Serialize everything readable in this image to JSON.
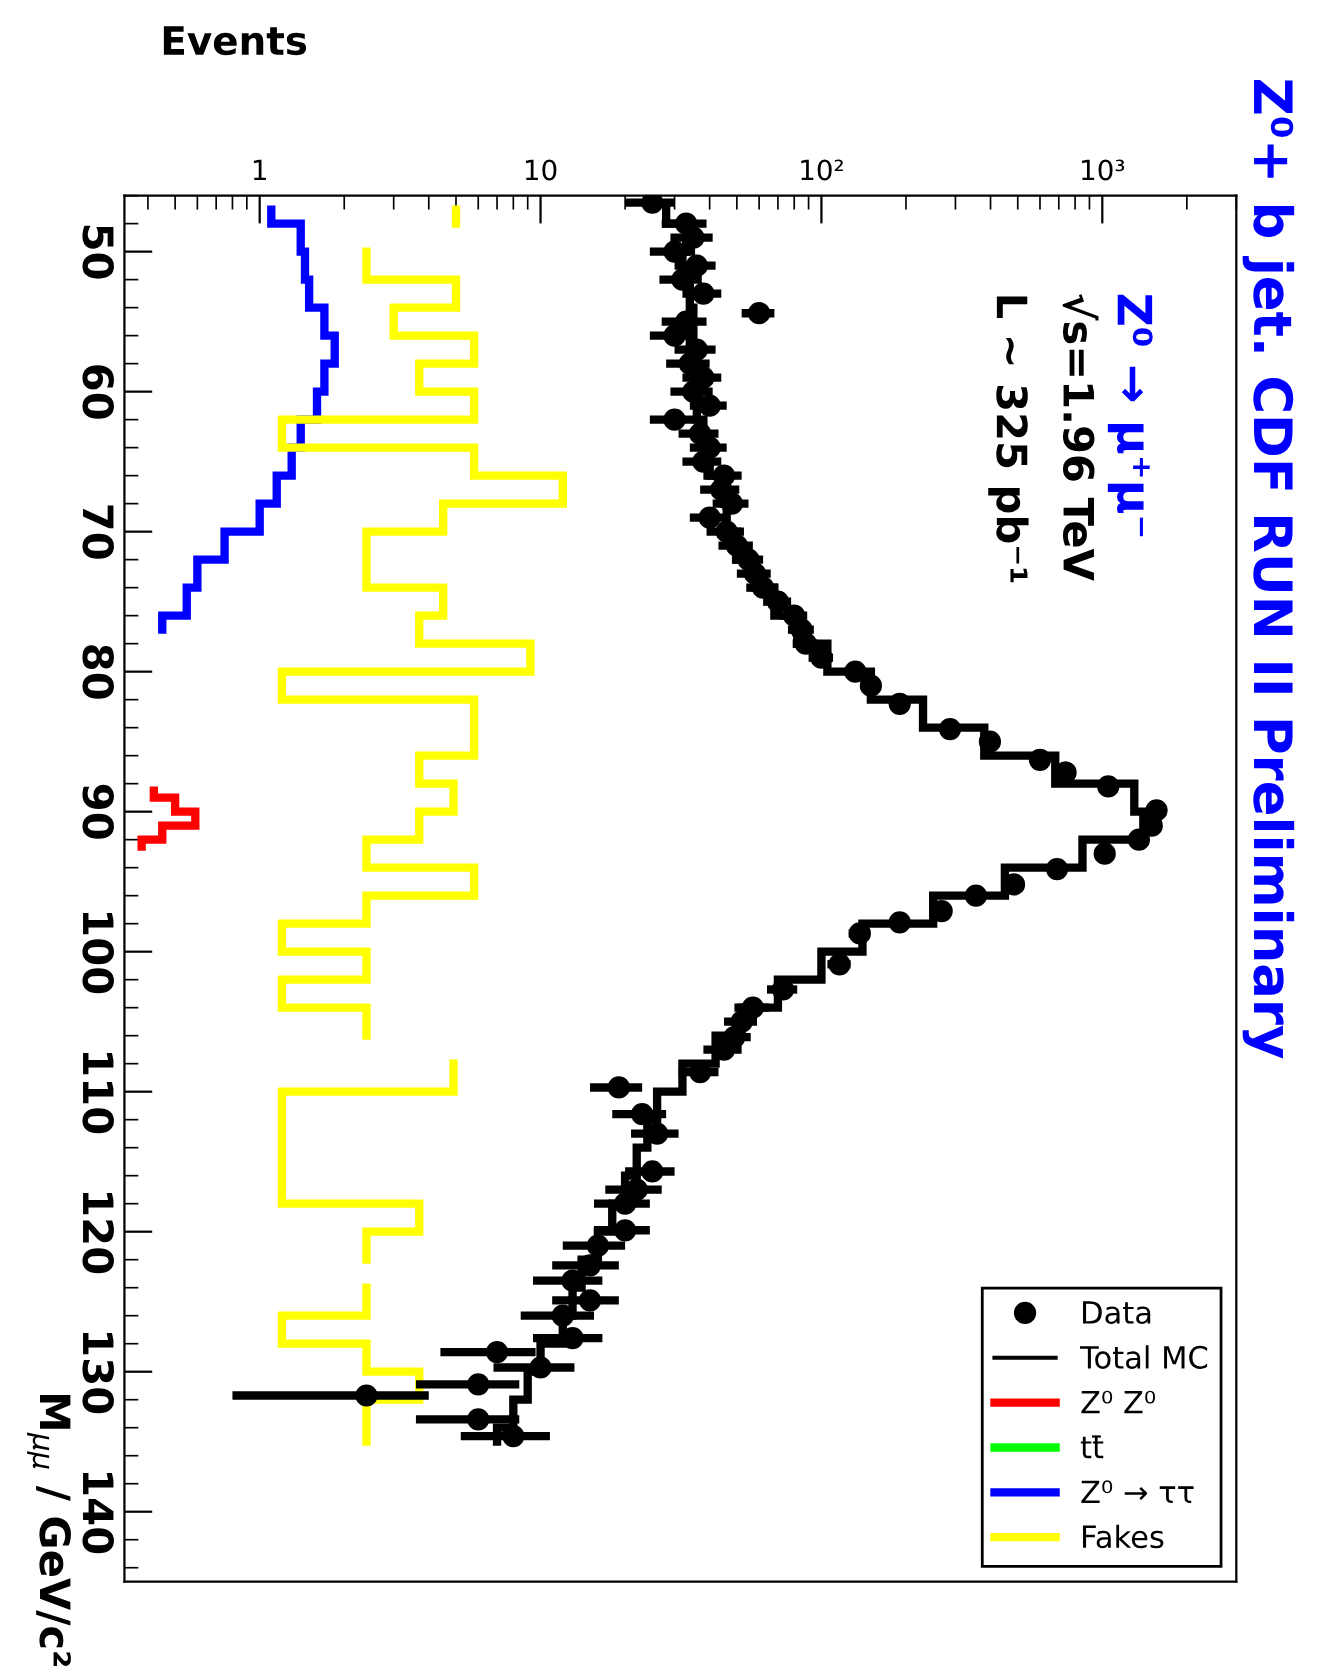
{
  "chart_data": {
    "type": "step",
    "orientation": "horizontal",
    "title": "Z⁰+ b jet. CDF RUN II Preliminary",
    "xlabel": "Events",
    "ylabel": "M$_{μμ}$ / GeV/c²",
    "annotations": [
      "Z⁰ → μ⁺μ⁻",
      "√s=1.96 TeV",
      "L ~ 325 pb⁻¹"
    ],
    "log": "x",
    "xlim": [
      0.33,
      3000
    ],
    "xticks": [
      1,
      10,
      {
        "value": 100,
        "label": "10²"
      },
      {
        "value": 1000,
        "label": "10³"
      }
    ],
    "ylim": [
      145,
      46
    ],
    "yticks": [
      50,
      60,
      70,
      80,
      90,
      100,
      110,
      120,
      130,
      140
    ],
    "grid": false,
    "legend": "bottom right",
    "series": [
      {
        "name": "Data",
        "type": "scatter",
        "marker": "circle",
        "color": "#000000",
        "x": [
          46.5,
          48,
          49,
          50,
          51,
          52,
          53,
          54.4,
          55,
          56,
          57,
          58,
          59,
          60,
          61,
          62,
          63,
          64,
          65,
          66,
          67,
          68,
          69,
          70,
          71,
          72,
          73,
          74,
          75,
          76,
          77,
          78,
          79,
          80,
          81,
          82.3,
          84.1,
          85,
          86.3,
          87.2,
          88.2,
          89.9,
          91,
          92,
          93,
          94.1,
          95.2,
          96,
          97.1,
          97.9,
          98.7,
          100.9,
          102.7,
          104,
          105,
          106.1,
          107,
          108.6,
          109.7,
          111.6,
          113,
          115.7,
          117,
          118,
          119.9,
          121,
          122.4,
          123.5,
          124.9,
          126,
          127.6,
          128.6,
          129.7,
          130.9,
          131.7,
          133.4,
          134.6
        ],
        "values": [
          25,
          33,
          35,
          30,
          36,
          32,
          38,
          60,
          33,
          30,
          36,
          34,
          38,
          35,
          40,
          30,
          37,
          40,
          38,
          45,
          44,
          48,
          40,
          46,
          50,
          55,
          58,
          62,
          70,
          80,
          85,
          88,
          100,
          132,
          150,
          190,
          287,
          398,
          600,
          740,
          1050,
          1560,
          1500,
          1350,
          1020,
          690,
          485,
          355,
          268,
          190,
          137,
          116,
          73,
          57,
          52,
          49,
          45,
          37,
          19,
          23,
          26,
          25,
          22,
          20,
          20,
          16,
          15,
          13,
          15,
          12,
          13,
          7,
          10,
          6,
          2.4,
          6,
          8
        ],
        "errors": [
          5,
          6,
          6,
          5.5,
          6,
          5.5,
          6,
          8,
          6,
          5.5,
          6,
          6,
          6,
          6,
          6,
          5.5,
          6,
          6,
          6,
          7,
          7,
          7,
          6,
          7,
          7,
          7,
          8,
          8,
          8,
          9,
          9,
          9,
          10,
          11,
          12,
          14,
          17,
          20,
          24,
          27,
          32,
          39,
          39,
          37,
          32,
          26,
          22,
          19,
          16,
          14,
          12,
          11,
          9,
          8,
          7,
          7,
          7,
          6,
          4,
          5,
          5,
          5,
          5,
          4.5,
          4.5,
          4,
          4,
          3.6,
          4,
          3.5,
          3.6,
          2.6,
          3.2,
          2.4,
          1.6,
          2.4,
          2.8
        ]
      },
      {
        "name": "Total MC",
        "color": "#000000",
        "x": [
          47,
          49,
          51,
          53,
          55,
          57,
          59,
          61,
          63,
          65,
          67,
          69,
          71,
          73,
          75,
          77,
          79,
          81,
          83,
          85,
          87,
          89,
          91,
          93,
          95,
          97,
          99,
          101,
          103,
          105,
          107,
          109,
          111,
          113,
          115,
          117,
          119,
          121,
          123,
          125,
          127,
          129,
          131,
          133,
          135
        ],
        "values": [
          28,
          33,
          32,
          34,
          35,
          34,
          36,
          36,
          38,
          40,
          45,
          46,
          50,
          58,
          68,
          82,
          105,
          150,
          230,
          380,
          680,
          1300,
          1400,
          850,
          450,
          250,
          140,
          100,
          70,
          52,
          42,
          32,
          26,
          24,
          22,
          20,
          18,
          16,
          14,
          13,
          12,
          10,
          9,
          8,
          7
        ]
      },
      {
        "name": "Z⁰ Z⁰",
        "color": "#ff0000",
        "x": [
          88.5,
          89.5,
          90.5,
          91.5,
          92.5
        ],
        "values": [
          0.42,
          0.5,
          0.59,
          0.45,
          0.38
        ]
      },
      {
        "name": "tt̄",
        "color": "#00ff00"
      },
      {
        "name": "Z⁰ → ττ",
        "color": "#0000ff",
        "x": [
          47,
          49,
          51,
          53,
          55,
          57,
          59,
          61,
          63,
          65,
          67,
          69,
          71,
          73,
          75,
          77
        ],
        "values": [
          1.1,
          1.4,
          1.45,
          1.5,
          1.7,
          1.85,
          1.7,
          1.6,
          1.4,
          1.3,
          1.15,
          1.0,
          0.75,
          0.6,
          0.55,
          0.45
        ]
      },
      {
        "name": "Fakes",
        "color": "#ffff00",
        "x": [
          47,
          49,
          51,
          53,
          55,
          57,
          59,
          61,
          63,
          65,
          67,
          69,
          71,
          73,
          75,
          77,
          79,
          81,
          83,
          85,
          87,
          89,
          91,
          93,
          95,
          97,
          99,
          101,
          103,
          105,
          107,
          109,
          111,
          113,
          115,
          117,
          119,
          121,
          123,
          125,
          127,
          129,
          131,
          133,
          135
        ],
        "values": [
          5,
          null,
          2.4,
          5,
          3,
          5.8,
          3.7,
          5.8,
          1.2,
          5.8,
          12,
          4.5,
          2.4,
          2.4,
          4.5,
          3.7,
          9.2,
          1.2,
          5.8,
          5.8,
          3.7,
          4.9,
          3.7,
          2.4,
          5.8,
          2.4,
          1.2,
          2.4,
          1.2,
          2.4,
          null,
          4.9,
          1.2,
          1.2,
          1.2,
          1.2,
          3.7,
          2.4,
          null,
          2.4,
          1.2,
          2.4,
          3.7,
          2.4,
          2.4
        ]
      }
    ]
  }
}
